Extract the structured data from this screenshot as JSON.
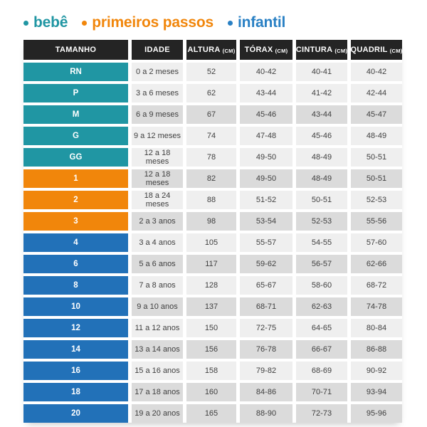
{
  "legend": {
    "items": [
      {
        "label": "bebê",
        "color": "#2096A3"
      },
      {
        "label": "primeiros passos",
        "color": "#F1860B"
      },
      {
        "label": "infantil",
        "color": "#2980C4"
      }
    ]
  },
  "colors": {
    "header_background": "#242424",
    "header_text": "#ffffff",
    "row_light": "#EFEFEF",
    "row_dark": "#DBDBDB",
    "cell_text": "#3f3f3f",
    "group_bebe": "#2096A3",
    "group_primeiros_passos": "#F1860B",
    "group_infantil": "#2271B8"
  },
  "chart_data": {
    "type": "table",
    "columns": [
      {
        "label": "TAMANHO",
        "unit": ""
      },
      {
        "label": "IDADE",
        "unit": ""
      },
      {
        "label": "ALTURA",
        "unit": "(CM)"
      },
      {
        "label": "TÓRAX",
        "unit": "(CM)"
      },
      {
        "label": "CINTURA",
        "unit": "(CM)"
      },
      {
        "label": "QUADRIL",
        "unit": "(CM)"
      }
    ],
    "rows": [
      {
        "tamanho": "RN",
        "group": "bebe",
        "idade": "0 a 2 meses",
        "altura": "52",
        "torax": "40-42",
        "cintura": "40-41",
        "quadril": "40-42",
        "shade": "light"
      },
      {
        "tamanho": "P",
        "group": "bebe",
        "idade": "3 a 6 meses",
        "altura": "62",
        "torax": "43-44",
        "cintura": "41-42",
        "quadril": "42-44",
        "shade": "light"
      },
      {
        "tamanho": "M",
        "group": "bebe",
        "idade": "6 a 9 meses",
        "altura": "67",
        "torax": "45-46",
        "cintura": "43-44",
        "quadril": "45-47",
        "shade": "dark"
      },
      {
        "tamanho": "G",
        "group": "bebe",
        "idade": "9 a 12 meses",
        "altura": "74",
        "torax": "47-48",
        "cintura": "45-46",
        "quadril": "48-49",
        "shade": "light"
      },
      {
        "tamanho": "GG",
        "group": "bebe",
        "idade": "12 a 18 meses",
        "altura": "78",
        "torax": "49-50",
        "cintura": "48-49",
        "quadril": "50-51",
        "shade": "light"
      },
      {
        "tamanho": "1",
        "group": "primeiros_passos",
        "idade": "12 a 18 meses",
        "altura": "82",
        "torax": "49-50",
        "cintura": "48-49",
        "quadril": "50-51",
        "shade": "dark"
      },
      {
        "tamanho": "2",
        "group": "primeiros_passos",
        "idade": "18 a 24 meses",
        "altura": "88",
        "torax": "51-52",
        "cintura": "50-51",
        "quadril": "52-53",
        "shade": "light"
      },
      {
        "tamanho": "3",
        "group": "primeiros_passos",
        "idade": "2 a 3 anos",
        "altura": "98",
        "torax": "53-54",
        "cintura": "52-53",
        "quadril": "55-56",
        "shade": "dark"
      },
      {
        "tamanho": "4",
        "group": "infantil",
        "idade": "3 a 4 anos",
        "altura": "105",
        "torax": "55-57",
        "cintura": "54-55",
        "quadril": "57-60",
        "shade": "light"
      },
      {
        "tamanho": "6",
        "group": "infantil",
        "idade": "5 a 6 anos",
        "altura": "117",
        "torax": "59-62",
        "cintura": "56-57",
        "quadril": "62-66",
        "shade": "dark"
      },
      {
        "tamanho": "8",
        "group": "infantil",
        "idade": "7 a 8 anos",
        "altura": "128",
        "torax": "65-67",
        "cintura": "58-60",
        "quadril": "68-72",
        "shade": "light"
      },
      {
        "tamanho": "10",
        "group": "infantil",
        "idade": "9 a 10 anos",
        "altura": "137",
        "torax": "68-71",
        "cintura": "62-63",
        "quadril": "74-78",
        "shade": "dark"
      },
      {
        "tamanho": "12",
        "group": "infantil",
        "idade": "11 a 12 anos",
        "altura": "150",
        "torax": "72-75",
        "cintura": "64-65",
        "quadril": "80-84",
        "shade": "light"
      },
      {
        "tamanho": "14",
        "group": "infantil",
        "idade": "13 a 14 anos",
        "altura": "156",
        "torax": "76-78",
        "cintura": "66-67",
        "quadril": "86-88",
        "shade": "dark"
      },
      {
        "tamanho": "16",
        "group": "infantil",
        "idade": "15 a 16 anos",
        "altura": "158",
        "torax": "79-82",
        "cintura": "68-69",
        "quadril": "90-92",
        "shade": "light"
      },
      {
        "tamanho": "18",
        "group": "infantil",
        "idade": "17 a 18 anos",
        "altura": "160",
        "torax": "84-86",
        "cintura": "70-71",
        "quadril": "93-94",
        "shade": "dark"
      },
      {
        "tamanho": "20",
        "group": "infantil",
        "idade": "19 a 20 anos",
        "altura": "165",
        "torax": "88-90",
        "cintura": "72-73",
        "quadril": "95-96",
        "shade": "dark"
      }
    ]
  }
}
